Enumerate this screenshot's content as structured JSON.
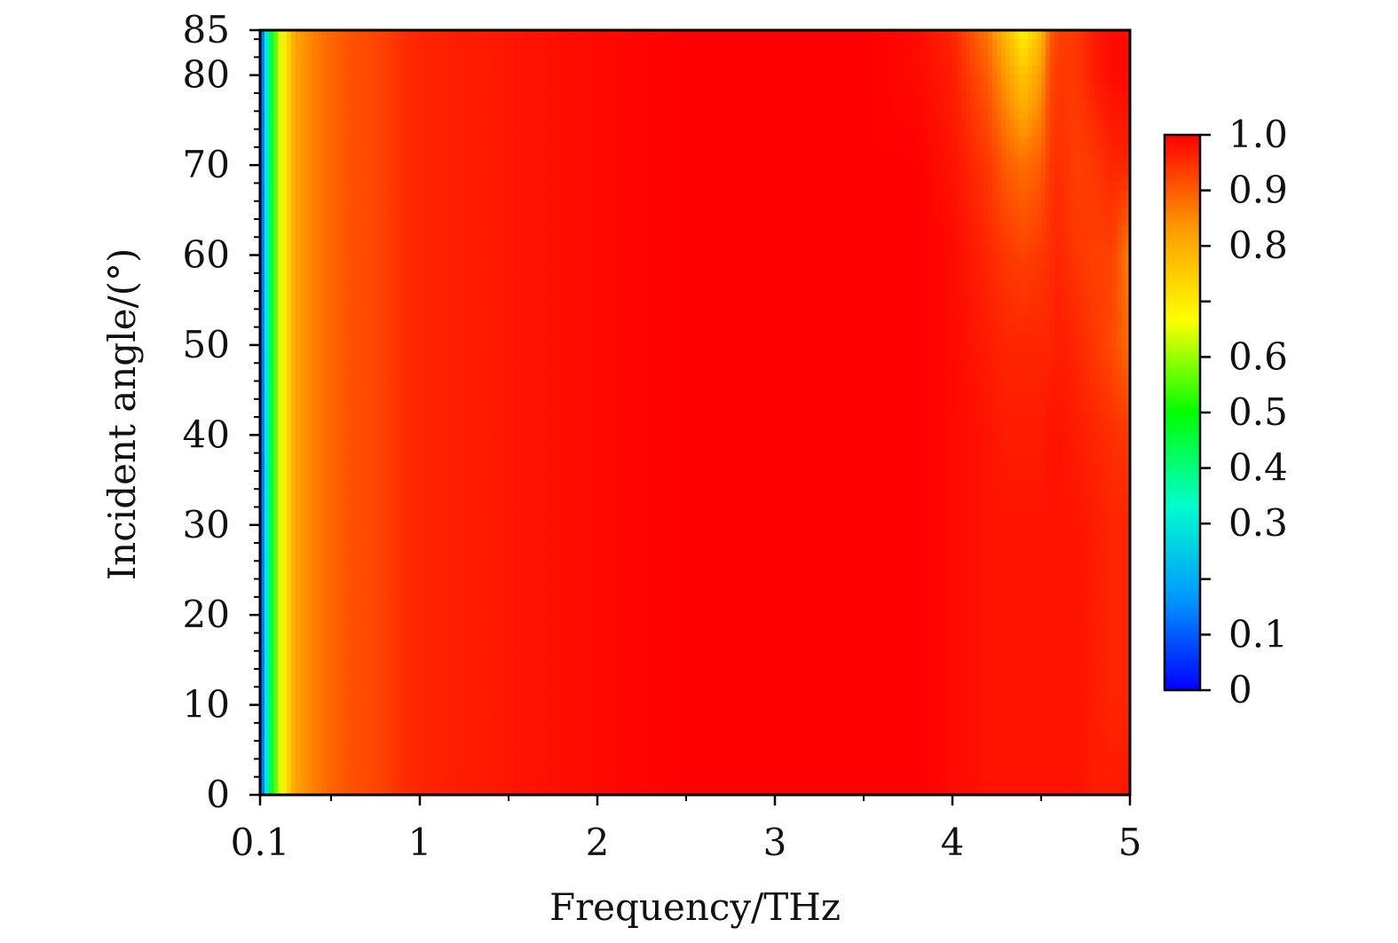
{
  "chart_data": {
    "type": "heatmap",
    "xlabel": "Frequency/THz",
    "ylabel": "Incident angle/(°)",
    "xlim": [
      0.1,
      5
    ],
    "ylim": [
      0,
      85
    ],
    "x_ticks": [
      0.1,
      1,
      2,
      3,
      4,
      5
    ],
    "x_tick_labels": [
      "0.1",
      "1",
      "2",
      "3",
      "4",
      "5"
    ],
    "y_ticks": [
      0,
      10,
      20,
      30,
      40,
      50,
      60,
      70,
      80,
      85
    ],
    "y_tick_labels": [
      "0",
      "10",
      "20",
      "30",
      "40",
      "50",
      "60",
      "70",
      "80",
      "85"
    ],
    "colorbar": {
      "range": [
        0,
        1.0
      ],
      "ticks": [
        0,
        0.1,
        0.3,
        0.4,
        0.5,
        0.6,
        0.8,
        0.9,
        1.0
      ],
      "tick_labels": [
        "0",
        "0.1",
        "0.3",
        "0.4",
        "0.5",
        "0.6",
        "0.8",
        "0.9",
        "1.0"
      ],
      "colormap": [
        "#0000ff",
        "#0099ff",
        "#00ffcc",
        "#00ff00",
        "#ffff00",
        "#ff9900",
        "#ff0000"
      ],
      "position": "right"
    },
    "grid": false,
    "x_samples": [
      0.1,
      0.15,
      0.2,
      0.3,
      0.4,
      0.5,
      0.6,
      0.7,
      0.8,
      0.9,
      1.0,
      1.3,
      1.6,
      2.0,
      2.5,
      3.0,
      3.5,
      3.8,
      4.0,
      4.2,
      4.3,
      4.4,
      4.5,
      4.55,
      4.6,
      4.7,
      4.8,
      4.9,
      5.0
    ],
    "y_samples": [
      0,
      10,
      20,
      30,
      40,
      50,
      60,
      70,
      80,
      85
    ],
    "z_rows": [
      [
        0.05,
        0.38,
        0.62,
        0.82,
        0.86,
        0.89,
        0.91,
        0.92,
        0.93,
        0.95,
        0.96,
        0.97,
        0.98,
        0.99,
        1.0,
        1.0,
        1.0,
        1.0,
        0.99,
        0.98,
        0.98,
        0.98,
        0.98,
        0.98,
        0.98,
        0.98,
        0.97,
        0.97,
        0.98
      ],
      [
        0.05,
        0.38,
        0.62,
        0.82,
        0.86,
        0.89,
        0.91,
        0.92,
        0.93,
        0.95,
        0.96,
        0.97,
        0.98,
        0.99,
        1.0,
        1.0,
        1.0,
        1.0,
        0.99,
        0.98,
        0.98,
        0.98,
        0.98,
        0.98,
        0.98,
        0.98,
        0.97,
        0.96,
        0.96
      ],
      [
        0.05,
        0.38,
        0.62,
        0.82,
        0.86,
        0.89,
        0.91,
        0.92,
        0.93,
        0.95,
        0.96,
        0.97,
        0.98,
        0.99,
        1.0,
        1.0,
        1.0,
        1.0,
        0.99,
        0.98,
        0.98,
        0.98,
        0.98,
        0.98,
        0.98,
        0.98,
        0.97,
        0.96,
        0.96
      ],
      [
        0.05,
        0.38,
        0.62,
        0.82,
        0.86,
        0.89,
        0.91,
        0.92,
        0.93,
        0.95,
        0.96,
        0.97,
        0.98,
        0.99,
        1.0,
        1.0,
        1.0,
        1.0,
        0.99,
        0.98,
        0.98,
        0.98,
        0.98,
        0.98,
        0.98,
        0.98,
        0.97,
        0.96,
        0.96
      ],
      [
        0.05,
        0.38,
        0.62,
        0.82,
        0.86,
        0.89,
        0.91,
        0.92,
        0.93,
        0.95,
        0.96,
        0.97,
        0.98,
        0.99,
        1.0,
        1.0,
        1.0,
        1.0,
        0.99,
        0.98,
        0.97,
        0.97,
        0.97,
        0.98,
        0.98,
        0.97,
        0.96,
        0.95,
        0.94
      ],
      [
        0.05,
        0.38,
        0.62,
        0.82,
        0.86,
        0.89,
        0.91,
        0.92,
        0.93,
        0.95,
        0.96,
        0.97,
        0.98,
        0.99,
        1.0,
        1.0,
        1.0,
        1.0,
        0.99,
        0.97,
        0.96,
        0.96,
        0.96,
        0.96,
        0.97,
        0.96,
        0.94,
        0.92,
        0.88
      ],
      [
        0.05,
        0.38,
        0.62,
        0.82,
        0.86,
        0.89,
        0.91,
        0.92,
        0.93,
        0.95,
        0.96,
        0.97,
        0.98,
        0.99,
        1.0,
        1.0,
        1.0,
        1.0,
        0.99,
        0.96,
        0.94,
        0.93,
        0.94,
        0.95,
        0.96,
        0.94,
        0.93,
        0.93,
        0.86
      ],
      [
        0.05,
        0.38,
        0.62,
        0.82,
        0.86,
        0.89,
        0.91,
        0.92,
        0.93,
        0.95,
        0.96,
        0.97,
        0.98,
        0.99,
        1.0,
        1.0,
        1.0,
        1.0,
        0.98,
        0.94,
        0.9,
        0.88,
        0.9,
        0.94,
        0.95,
        0.93,
        0.94,
        0.96,
        0.96
      ],
      [
        0.05,
        0.38,
        0.62,
        0.82,
        0.86,
        0.89,
        0.91,
        0.92,
        0.93,
        0.95,
        0.96,
        0.97,
        0.98,
        0.99,
        1.0,
        1.0,
        1.0,
        0.99,
        0.97,
        0.9,
        0.83,
        0.76,
        0.83,
        0.92,
        0.94,
        0.94,
        0.97,
        0.99,
        0.99
      ],
      [
        0.05,
        0.38,
        0.62,
        0.82,
        0.86,
        0.89,
        0.91,
        0.92,
        0.93,
        0.95,
        0.96,
        0.97,
        0.98,
        0.99,
        1.0,
        1.0,
        1.0,
        0.99,
        0.96,
        0.87,
        0.78,
        0.68,
        0.78,
        0.9,
        0.93,
        0.94,
        0.97,
        0.99,
        0.99
      ]
    ]
  }
}
